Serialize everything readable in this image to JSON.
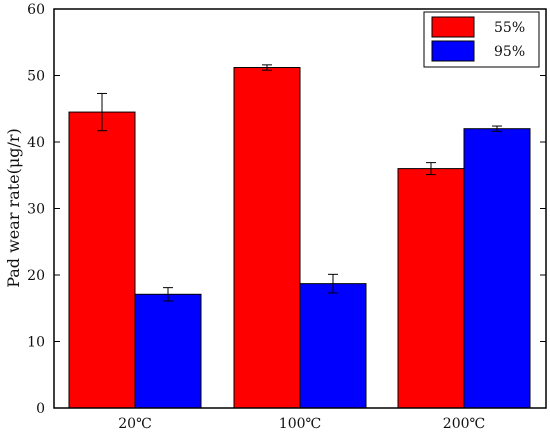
{
  "chart_data": {
    "type": "bar",
    "title": "",
    "xlabel": "",
    "ylabel": "Pad wear rate(μg/r)",
    "ylim": [
      0,
      60
    ],
    "yticks": [
      0,
      10,
      20,
      30,
      40,
      50,
      60
    ],
    "categories": [
      "20℃",
      "100℃",
      "200℃"
    ],
    "grid": false,
    "legend_position": "top-right",
    "series": [
      {
        "name": "55%",
        "color": "#ff0000",
        "values": [
          44.5,
          51.2,
          36.0
        ],
        "errors": [
          2.8,
          0.4,
          0.9
        ]
      },
      {
        "name": "95%",
        "color": "#0000ff",
        "values": [
          17.1,
          18.7,
          42.0
        ],
        "errors": [
          1.0,
          1.4,
          0.4
        ]
      }
    ]
  }
}
